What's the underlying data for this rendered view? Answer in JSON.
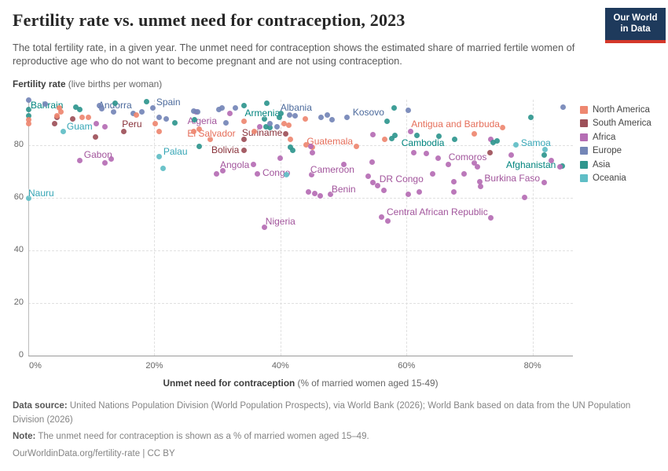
{
  "header": {
    "title": "Fertility rate vs. unmet need for contraception, 2023",
    "subtitle": "The total fertility rate, in a given year. The unmet need for contraception shows the estimated share of married fertile women of reproductive age who do not want to become pregnant and are not using contraception.",
    "logo_line1": "Our World",
    "logo_line2": "in Data"
  },
  "axes": {
    "y_title_main": "Fertility rate",
    "y_title_unit": " (live births per woman)",
    "x_title_main": "Unmet need for contraception",
    "x_title_unit": " (% of married women aged 15-49)",
    "y_ticks": [
      {
        "label": "0",
        "value": 0
      },
      {
        "label": "20",
        "value": 20
      },
      {
        "label": "40",
        "value": 40
      },
      {
        "label": "60",
        "value": 60
      },
      {
        "label": "80",
        "value": 80
      }
    ],
    "x_ticks": [
      {
        "label": "0%",
        "value": 0
      },
      {
        "label": "20%",
        "value": 20
      },
      {
        "label": "40%",
        "value": 40
      },
      {
        "label": "60%",
        "value": 60
      },
      {
        "label": "80%",
        "value": 80
      }
    ],
    "y_gridlines": [
      20,
      40,
      60,
      80
    ],
    "x_gridlines": [
      20,
      40,
      60,
      80
    ]
  },
  "continent_colors": {
    "North America": {
      "dot": "#EE8770",
      "label": "#E56E5A"
    },
    "South America": {
      "dot": "#9D5059",
      "label": "#883039"
    },
    "Africa": {
      "dot": "#B56DB4",
      "label": "#A2559C"
    },
    "Europe": {
      "dot": "#7486B7",
      "label": "#4C6A9C"
    },
    "Asia": {
      "dot": "#2F968E",
      "label": "#00847E"
    },
    "Oceania": {
      "dot": "#5FBEC6",
      "label": "#35A5B5"
    }
  },
  "legend": {
    "items": [
      "North America",
      "South America",
      "Africa",
      "Europe",
      "Asia",
      "Oceania"
    ]
  },
  "footer": {
    "source_label": "Data source:",
    "source_text": "United Nations Population Division (World Population Prospects), via World Bank (2026); World Bank based on data from the UN Population Division (2026)",
    "note_label": "Note:",
    "note_text": "The unmet need for contraception is shown as a % of married women aged 15–49.",
    "url_line": "OurWorldinData.org/fertility-rate | CC BY"
  },
  "chart_data": {
    "type": "scatter",
    "title": "Fertility rate vs. unmet need for contraception, 2023",
    "xlabel": "Unmet need for contraception (% of married women aged 15-49)",
    "ylabel": "Fertility rate (live births per woman)",
    "xlim": [
      0,
      86.4
    ],
    "ylim": [
      0,
      97.2
    ],
    "grid": true,
    "legend_position": "right",
    "points_format": [
      "continent",
      "unmet_need_pct",
      "fertility_rate",
      "country",
      "label_anchor",
      "label_dx",
      "label_dy"
    ],
    "points": [
      [
        "Asia",
        0,
        93.5,
        "Bahrain",
        "start",
        3,
        -12
      ],
      [
        "Oceania",
        5.6,
        85.2,
        "Guam",
        "start",
        4,
        -13
      ],
      [
        "Europe",
        13.5,
        92.5,
        "Andorra",
        "middle",
        2,
        -16
      ],
      [
        "South America",
        15.2,
        85.2,
        "Peru",
        "middle",
        10,
        -16
      ],
      [
        "Europe",
        19.8,
        94.2,
        "Spain",
        "start",
        4,
        -14
      ],
      [
        "Africa",
        26.6,
        92.7,
        "Algeria",
        "middle",
        8,
        5
      ],
      [
        "North America",
        28.8,
        82.2,
        "El Salvador",
        "middle",
        2,
        -14
      ],
      [
        "Asia",
        37.5,
        90.0,
        "Armenia",
        "middle",
        -3,
        -14
      ],
      [
        "South America",
        40.8,
        84.3,
        "Suriname",
        "end",
        -4,
        -8
      ],
      [
        "Europe",
        41.5,
        91.5,
        "Albania",
        "middle",
        8,
        -16
      ],
      [
        "Europe",
        50.6,
        90.6,
        "Kosovo",
        "start",
        7,
        -13
      ],
      [
        "North America",
        45.1,
        79.3,
        "Guatemala",
        "middle",
        22,
        -14
      ],
      [
        "North America",
        75.3,
        86.7,
        "Antigua and Barbuda",
        "end",
        -4,
        -11
      ],
      [
        "Asia",
        61.6,
        83.7,
        "Cambodia",
        "middle",
        8,
        3
      ],
      [
        "Oceania",
        77.4,
        80.1,
        "Samoa",
        "start",
        6,
        -9
      ],
      [
        "Africa",
        8.2,
        74.2,
        "Gabon",
        "start",
        5,
        -14
      ],
      [
        "Oceania",
        20.8,
        75.7,
        "Palau",
        "start",
        5,
        -13
      ],
      [
        "South America",
        34.2,
        78.1,
        "Bolivia",
        "end",
        -6,
        -7
      ],
      [
        "Africa",
        35.7,
        72.7,
        "Angola",
        "end",
        -5,
        -6
      ],
      [
        "Africa",
        36.4,
        69.1,
        "Congo",
        "start",
        6,
        -8
      ],
      [
        "Africa",
        45.0,
        68.8,
        "Cameroon",
        "middle",
        26,
        -13
      ],
      [
        "Africa",
        47.9,
        61.3,
        "Benin",
        "middle",
        17,
        -13
      ],
      [
        "Africa",
        54.7,
        65.8,
        "DR Congo",
        "start",
        8,
        -11
      ],
      [
        "Africa",
        70.7,
        73.3,
        "Comoros",
        "middle",
        -8,
        -14
      ],
      [
        "Asia",
        84.7,
        72.1,
        "Afghanistan",
        "end",
        -8,
        -8
      ],
      [
        "Africa",
        81.8,
        65.8,
        "Burkina Faso",
        "end",
        -5,
        -12
      ],
      [
        "Africa",
        73.4,
        52.4,
        "Central African Republic",
        "end",
        -4,
        -14
      ],
      [
        "Africa",
        37.5,
        48.8,
        "Nigeria",
        "middle",
        20,
        -14
      ],
      [
        "Oceania",
        0,
        59.9,
        "Nauru",
        "start",
        0,
        -13
      ],
      [
        "Europe",
        0,
        97.0
      ],
      [
        "Asia",
        0,
        91.2
      ],
      [
        "North America",
        0,
        89.7
      ],
      [
        "North America",
        0,
        88.2
      ],
      [
        "Europe",
        2.7,
        95.7
      ],
      [
        "South America",
        4.5,
        90.6
      ],
      [
        "North America",
        4.9,
        94.2
      ],
      [
        "North America",
        5.2,
        92.7
      ],
      [
        "North America",
        4.6,
        91.2
      ],
      [
        "South America",
        4.2,
        88.2
      ],
      [
        "Asia",
        7.6,
        94.5
      ],
      [
        "Asia",
        8.2,
        93.6
      ],
      [
        "South America",
        7.1,
        90.0
      ],
      [
        "North America",
        8.6,
        90.6
      ],
      [
        "North America",
        9.5,
        90.6
      ],
      [
        "Africa",
        10.8,
        88.2
      ],
      [
        "South America",
        10.7,
        83.1
      ],
      [
        "Africa",
        12.1,
        87.0
      ],
      [
        "Europe",
        11.3,
        95.1
      ],
      [
        "Europe",
        11.7,
        93.9
      ],
      [
        "Asia",
        13.8,
        96.0
      ],
      [
        "Europe",
        16.7,
        92.1
      ],
      [
        "Europe",
        18.0,
        92.7
      ],
      [
        "North America",
        17.1,
        91.5
      ],
      [
        "Africa",
        13.2,
        74.8
      ],
      [
        "Africa",
        12.1,
        73.3
      ],
      [
        "Asia",
        18.8,
        96.6
      ],
      [
        "Europe",
        20.8,
        90.6
      ],
      [
        "Europe",
        21.9,
        90.0
      ],
      [
        "North America",
        20.1,
        88.2
      ],
      [
        "Asia",
        23.3,
        88.5
      ],
      [
        "North America",
        20.7,
        85.2
      ],
      [
        "Europe",
        26.3,
        93.0
      ],
      [
        "Europe",
        26.9,
        92.7
      ],
      [
        "Asia",
        26.4,
        89.7
      ],
      [
        "North America",
        26.3,
        85.2
      ],
      [
        "North America",
        27.1,
        86.1
      ],
      [
        "Asia",
        27.1,
        79.6
      ],
      [
        "Oceania",
        21.4,
        71.2
      ],
      [
        "Europe",
        30.2,
        93.6
      ],
      [
        "Europe",
        30.7,
        94.2
      ],
      [
        "Europe",
        31.3,
        88.5
      ],
      [
        "Africa",
        32.0,
        92.1
      ],
      [
        "Asia",
        34.2,
        95.1
      ],
      [
        "North America",
        34.2,
        89.1
      ],
      [
        "Africa",
        36.7,
        87.0
      ],
      [
        "Asia",
        37.7,
        87.0
      ],
      [
        "Asia",
        38.3,
        86.7
      ],
      [
        "Europe",
        38.3,
        88.2
      ],
      [
        "Europe",
        39.4,
        87.0
      ],
      [
        "Asia",
        39.8,
        90.6
      ],
      [
        "Asia",
        40.1,
        92.1
      ],
      [
        "North America",
        40.6,
        88.2
      ],
      [
        "North America",
        41.3,
        87.6
      ],
      [
        "North America",
        35.8,
        85.2
      ],
      [
        "South America",
        34.2,
        82.2
      ],
      [
        "North America",
        41.6,
        82.2
      ],
      [
        "Asia",
        41.6,
        79.3
      ],
      [
        "Asia",
        41.9,
        78.1
      ],
      [
        "Africa",
        40.0,
        75.1
      ],
      [
        "Oceania",
        41.0,
        68.8
      ],
      [
        "Africa",
        29.8,
        69.1
      ],
      [
        "Africa",
        30.8,
        70.3
      ],
      [
        "Asia",
        37.9,
        96.0
      ],
      [
        "Europe",
        32.9,
        94.2
      ],
      [
        "Europe",
        42.3,
        91.2
      ],
      [
        "North America",
        43.9,
        90.0
      ],
      [
        "Europe",
        46.4,
        90.6
      ],
      [
        "Europe",
        47.5,
        91.5
      ],
      [
        "Europe",
        48.2,
        89.7
      ],
      [
        "North America",
        44.1,
        80.1
      ],
      [
        "Africa",
        44.8,
        79.6
      ],
      [
        "Africa",
        45.1,
        77.2
      ],
      [
        "North America",
        52.0,
        79.6
      ],
      [
        "Africa",
        54.7,
        84.0
      ],
      [
        "North America",
        56.6,
        82.2
      ],
      [
        "Asia",
        58.0,
        94.2
      ],
      [
        "Europe",
        60.3,
        93.3
      ],
      [
        "Africa",
        54.5,
        73.6
      ],
      [
        "Africa",
        50.0,
        72.7
      ],
      [
        "Africa",
        53.9,
        68.2
      ],
      [
        "Africa",
        55.4,
        64.6
      ],
      [
        "Africa",
        56.4,
        62.8
      ],
      [
        "Asia",
        56.9,
        89.1
      ],
      [
        "Africa",
        44.5,
        62.2
      ],
      [
        "Africa",
        45.4,
        61.6
      ],
      [
        "Africa",
        46.3,
        60.7
      ],
      [
        "Africa",
        56.0,
        52.7
      ],
      [
        "Africa",
        57.0,
        51.2
      ],
      [
        "Asia",
        57.7,
        82.5
      ],
      [
        "Asia",
        58.2,
        83.7
      ],
      [
        "Africa",
        60.6,
        85.2
      ],
      [
        "Asia",
        65.1,
        83.4
      ],
      [
        "Asia",
        67.6,
        82.2
      ],
      [
        "North America",
        70.7,
        84.3
      ],
      [
        "Asia",
        74.4,
        81.6
      ],
      [
        "Africa",
        73.4,
        82.2
      ],
      [
        "Asia",
        73.7,
        81.0
      ],
      [
        "Asia",
        79.7,
        90.6
      ],
      [
        "Europe",
        84.9,
        94.5
      ],
      [
        "Oceania",
        82.0,
        78.3
      ],
      [
        "Asia",
        81.9,
        76.3
      ],
      [
        "South America",
        73.2,
        77.2
      ],
      [
        "Africa",
        61.2,
        77.2
      ],
      [
        "Africa",
        63.2,
        76.9
      ],
      [
        "Africa",
        65.0,
        75.1
      ],
      [
        "Africa",
        66.6,
        72.7
      ],
      [
        "Africa",
        76.6,
        76.3
      ],
      [
        "Africa",
        71.3,
        71.8
      ],
      [
        "Africa",
        83.0,
        74.2
      ],
      [
        "Africa",
        84.4,
        71.8
      ],
      [
        "Africa",
        71.8,
        64.3
      ],
      [
        "Africa",
        64.1,
        69.1
      ],
      [
        "Africa",
        69.1,
        69.1
      ],
      [
        "Africa",
        71.6,
        66.1
      ],
      [
        "Africa",
        78.7,
        60.1
      ],
      [
        "Africa",
        67.5,
        66.1
      ],
      [
        "Africa",
        67.5,
        62.2
      ],
      [
        "Africa",
        60.3,
        61.3
      ],
      [
        "Africa",
        62.0,
        62.2
      ]
    ]
  }
}
